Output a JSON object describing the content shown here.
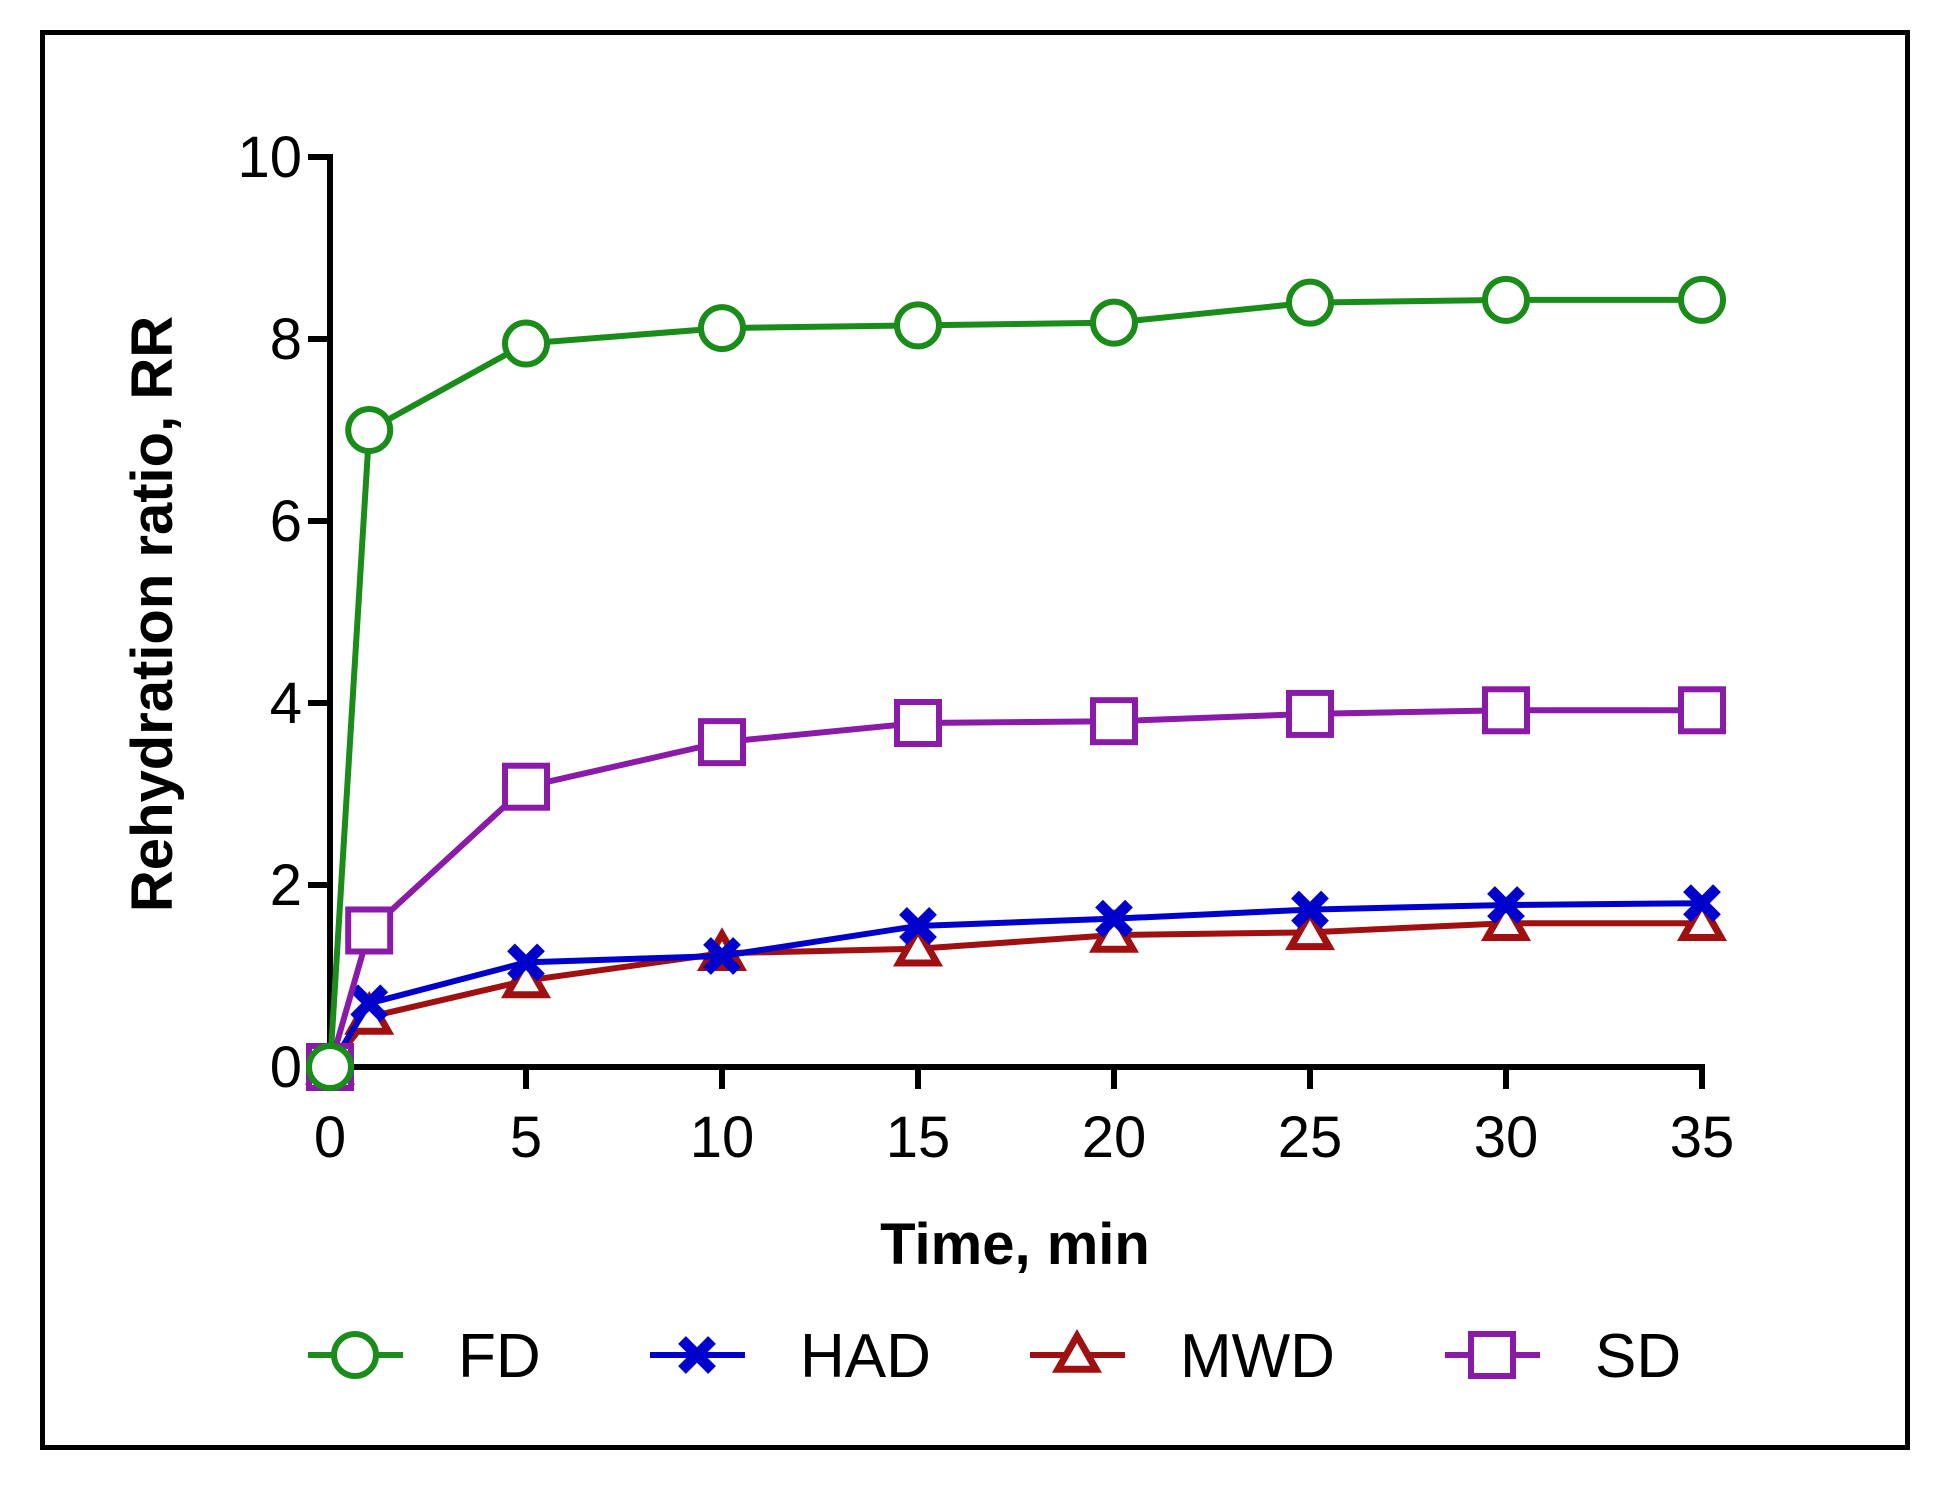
{
  "chart_data": {
    "type": "line",
    "title": "",
    "xlabel": "Time, min",
    "ylabel": "Rehydration ratio, RR",
    "xlim": [
      0,
      35
    ],
    "ylim": [
      0,
      10
    ],
    "xticks": [
      0,
      5,
      10,
      15,
      20,
      25,
      30,
      35
    ],
    "yticks": [
      0,
      2,
      4,
      6,
      8,
      10
    ],
    "xtick_labels": [
      "0",
      "5",
      "10",
      "15",
      "20",
      "25",
      "30",
      "35"
    ],
    "ytick_labels": [
      "0",
      "2",
      "4",
      "6",
      "8",
      "10"
    ],
    "x": [
      0,
      1,
      5,
      10,
      15,
      20,
      25,
      30,
      35
    ],
    "series": [
      {
        "name": "FD",
        "marker": "circle",
        "color": "#1a8c1a",
        "values": [
          0,
          7.0,
          7.95,
          8.12,
          8.15,
          8.18,
          8.4,
          8.43,
          8.43
        ]
      },
      {
        "name": "HAD",
        "marker": "x",
        "color": "#0000cc",
        "values": [
          0,
          0.7,
          1.15,
          1.22,
          1.55,
          1.63,
          1.73,
          1.78,
          1.8
        ]
      },
      {
        "name": "MWD",
        "marker": "triangle",
        "color": "#a01010",
        "values": [
          0,
          0.55,
          0.95,
          1.25,
          1.3,
          1.45,
          1.48,
          1.58,
          1.58
        ]
      },
      {
        "name": "SD",
        "marker": "square",
        "color": "#8a1aa8",
        "values": [
          0,
          1.5,
          3.08,
          3.57,
          3.78,
          3.8,
          3.88,
          3.92,
          3.92
        ]
      }
    ],
    "legend_position": "bottom",
    "grid": false
  }
}
